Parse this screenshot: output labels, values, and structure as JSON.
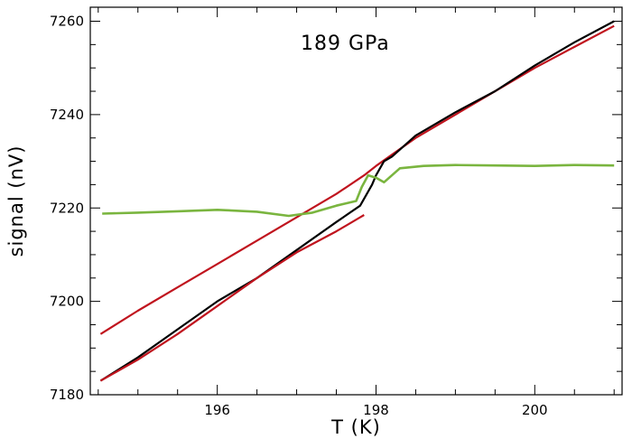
{
  "chart_data": {
    "type": "line",
    "annotation": "189 GPa",
    "xlabel": "T (K)",
    "ylabel": "signal (nV)",
    "xlim": [
      194.4,
      201.1
    ],
    "ylim": [
      7180,
      7263
    ],
    "xticks_major": [
      196,
      198,
      200
    ],
    "xticks_minor_step": 0.5,
    "yticks_major": [
      7180,
      7200,
      7220,
      7240,
      7260
    ],
    "yticks_minor_step": 5,
    "grid": false,
    "colors": {
      "red": "#c0141e",
      "black": "#000000",
      "green": "#7ab53f"
    },
    "series": [
      {
        "color": "red",
        "x": [
          194.53,
          195.0,
          195.5,
          196.0,
          196.5,
          197.0,
          197.5,
          197.85,
          198.0,
          198.5,
          199.0,
          199.5,
          200.0,
          200.5,
          201.0
        ],
        "y": [
          7193,
          7198,
          7203,
          7208,
          7213,
          7218,
          7223,
          7227,
          7229,
          7235,
          7240,
          7245,
          7250,
          7254.5,
          7259
        ]
      },
      {
        "color": "black",
        "x": [
          194.53,
          195.0,
          195.5,
          196.0,
          196.5,
          197.0,
          197.5,
          197.8,
          197.85,
          197.9,
          197.95,
          198.0,
          198.1,
          198.2,
          198.5,
          199.0,
          199.5,
          200.0,
          200.5,
          201.0
        ],
        "y": [
          7183,
          7188,
          7194,
          7200,
          7205,
          7211,
          7217,
          7220.5,
          7222,
          7223.5,
          7225,
          7227,
          7230,
          7231,
          7235.5,
          7240.5,
          7245,
          7250.5,
          7255.5,
          7260
        ]
      },
      {
        "color": "red",
        "x": [
          194.53,
          195.0,
          195.5,
          196.0,
          196.5,
          197.0,
          197.5,
          197.8,
          197.85
        ],
        "y": [
          7183,
          7187.5,
          7193,
          7199,
          7205,
          7210.5,
          7215,
          7218,
          7218.5
        ]
      },
      {
        "color": "green",
        "x": [
          194.55,
          195.0,
          195.5,
          196.0,
          196.5,
          196.9,
          197.2,
          197.5,
          197.75,
          197.82,
          197.9,
          198.0,
          198.1,
          198.3,
          198.6,
          199.0,
          199.5,
          200.0,
          200.5,
          201.0
        ],
        "y": [
          7218.8,
          7219.0,
          7219.3,
          7219.6,
          7219.2,
          7218.3,
          7219.0,
          7220.5,
          7221.5,
          7224.5,
          7227.0,
          7226.5,
          7225.5,
          7228.5,
          7229.0,
          7229.2,
          7229.1,
          7229.0,
          7229.2,
          7229.1
        ]
      }
    ]
  }
}
